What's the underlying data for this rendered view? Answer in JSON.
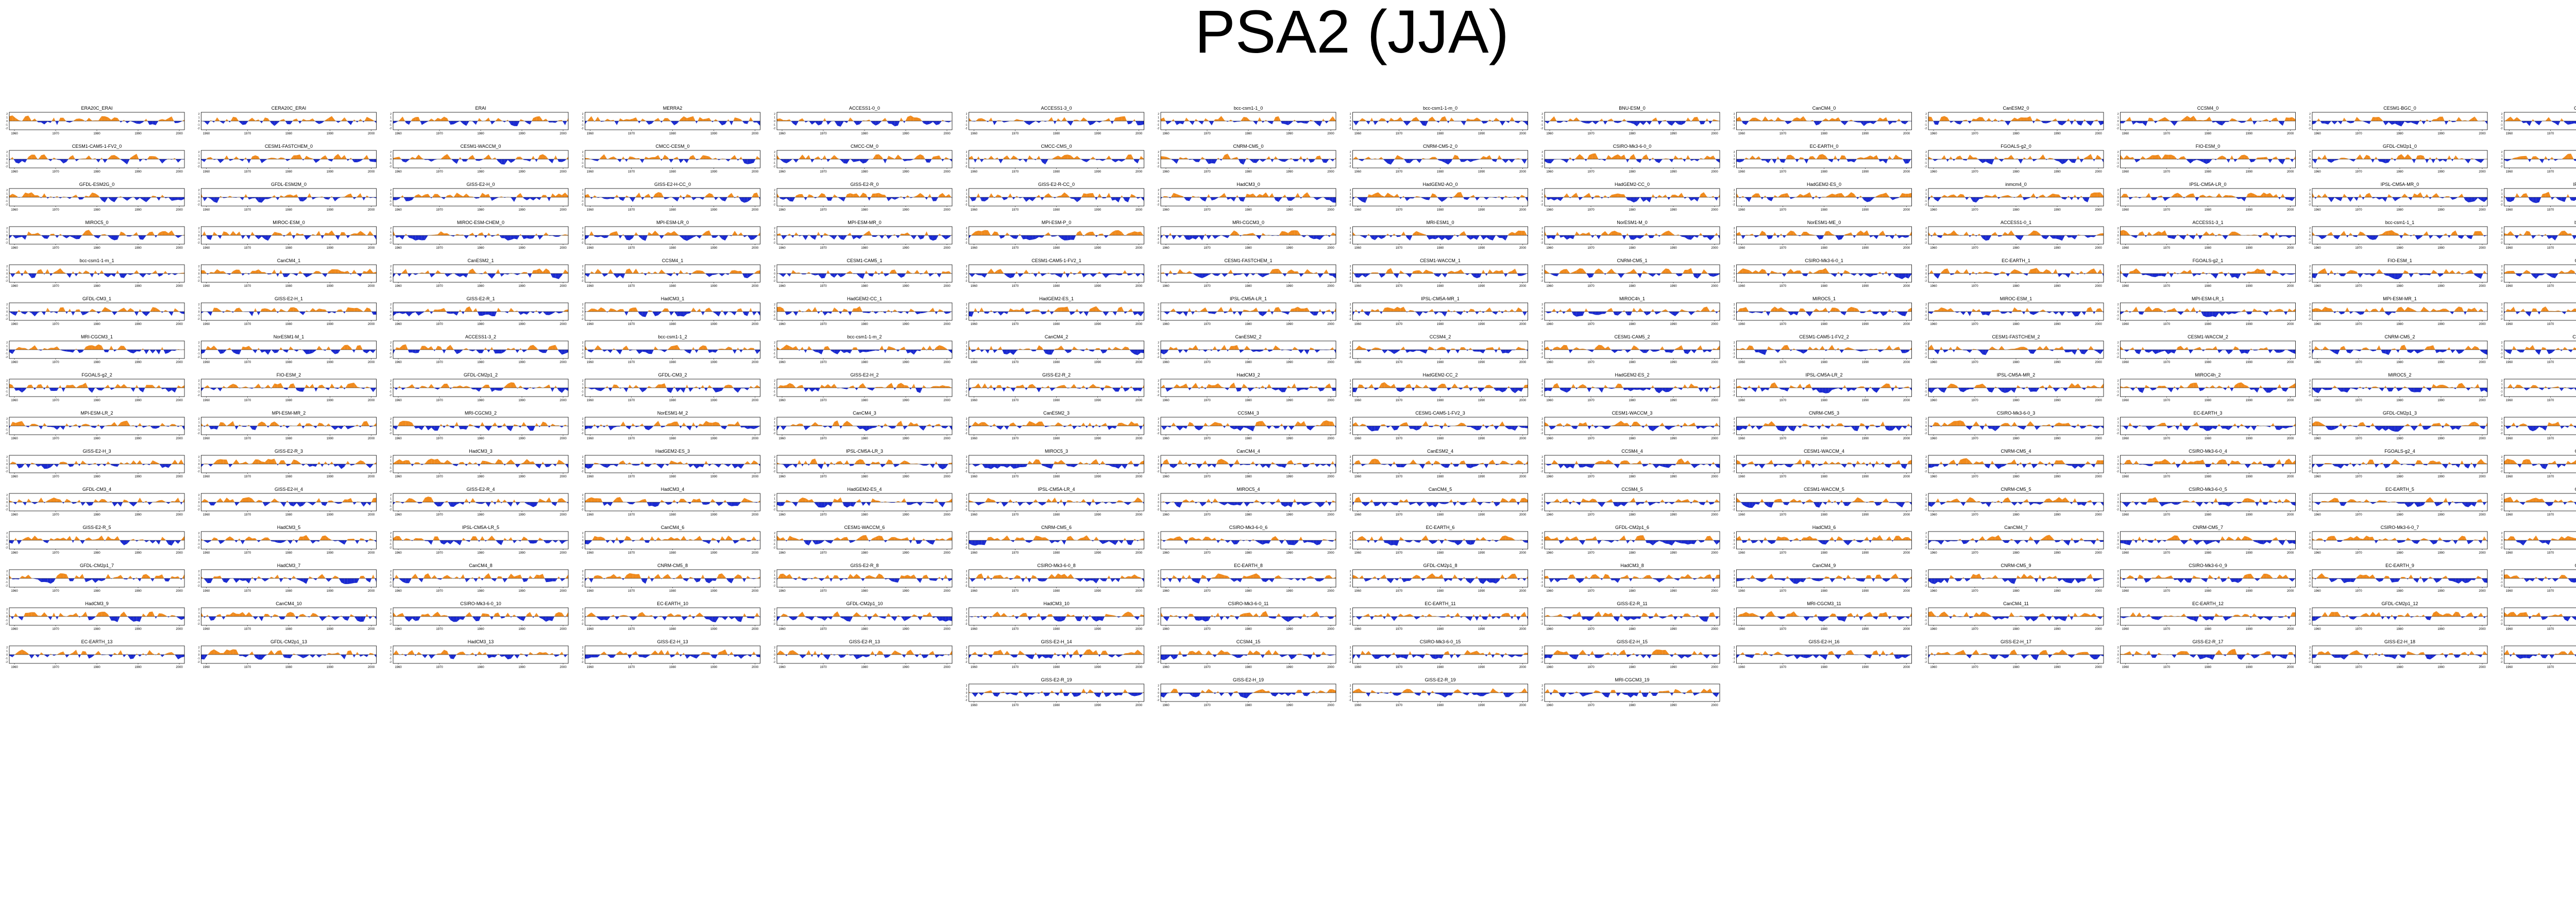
{
  "title": "PSA2 (JJA)",
  "colors": {
    "positive": "#f08a1c",
    "negative": "#1a2ad0",
    "axis": "#000000"
  },
  "xticks": [
    "1960",
    "1970",
    "1980",
    "1990",
    "2000"
  ],
  "yticks": [
    "2",
    "1",
    "0",
    "-1",
    "-2"
  ],
  "rows": [
    [
      "ERA20C_ERAI",
      "CERA20C_ERAI",
      "ERAI",
      "MERRA2",
      "ACCESS1-0_0",
      "ACCESS1-3_0",
      "bcc-csm1-1_0",
      "bcc-csm1-1-m_0",
      "BNU-ESM_0",
      "CanCM4_0",
      "CanESM2_0",
      "CCSM4_0",
      "CESM1-BGC_0",
      "CESM1-CAM5_0"
    ],
    [
      "CESM1-CAM5-1-FV2_0",
      "CESM1-FASTCHEM_0",
      "CESM1-WACCM_0",
      "CMCC-CESM_0",
      "CMCC-CM_0",
      "CMCC-CMS_0",
      "CNRM-CM5_0",
      "CNRM-CM5-2_0",
      "CSIRO-Mk3-6-0_0",
      "EC-EARTH_0",
      "FGOALS-g2_0",
      "FIO-ESM_0",
      "GFDL-CM2p1_0",
      "GFDL-CM3_0"
    ],
    [
      "GFDL-ESM2G_0",
      "GFDL-ESM2M_0",
      "GISS-E2-H_0",
      "GISS-E2-H-CC_0",
      "GISS-E2-R_0",
      "GISS-E2-R-CC_0",
      "HadCM3_0",
      "HadGEM2-AO_0",
      "HadGEM2-CC_0",
      "HadGEM2-ES_0",
      "inmcm4_0",
      "IPSL-CM5A-LR_0",
      "IPSL-CM5A-MR_0",
      "IPSL-CM5B-LR_0"
    ],
    [
      "MIROC5_0",
      "MIROC-ESM_0",
      "MIROC-ESM-CHEM_0",
      "MPI-ESM-LR_0",
      "MPI-ESM-MR_0",
      "MPI-ESM-P_0",
      "MRI-CGCM3_0",
      "MRI-ESM1_0",
      "NorESM1-M_0",
      "NorESM1-ME_0",
      "ACCESS1-0_1",
      "ACCESS1-3_1",
      "bcc-csm1-1_1",
      "bcc-csm1-1-m_1"
    ],
    [
      "bcc-csm1-1-m_1",
      "CanCM4_1",
      "CanESM2_1",
      "CCSM4_1",
      "CESM1-CAM5_1",
      "CESM1-CAM5-1-FV2_1",
      "CESM1-FASTCHEM_1",
      "CESM1-WACCM_1",
      "CNRM-CM5_1",
      "CSIRO-Mk3-6-0_1",
      "EC-EARTH_1",
      "FGOALS-g2_1",
      "FIO-ESM_1",
      "GFDL-CM2p1_1"
    ],
    [
      "GFDL-CM3_1",
      "GISS-E2-H_1",
      "GISS-E2-R_1",
      "HadCM3_1",
      "HadGEM2-CC_1",
      "HadGEM2-ES_1",
      "IPSL-CM5A-LR_1",
      "IPSL-CM5A-MR_1",
      "MIROC4h_1",
      "MIROC5_1",
      "MIROC-ESM_1",
      "MPI-ESM-LR_1",
      "MPI-ESM-MR_1",
      "MPI-ESM-P_1"
    ],
    [
      "MRI-CGCM3_1",
      "NorESM1-M_1",
      "ACCESS1-3_2",
      "bcc-csm1-1_2",
      "bcc-csm1-1-m_2",
      "CanCM4_2",
      "CanESM2_2",
      "CCSM4_2",
      "CESM1-CAM5_2",
      "CESM1-CAM5-1-FV2_2",
      "CESM1-FASTCHEM_2",
      "CESM1-WACCM_2",
      "CNRM-CM5_2",
      "CSIRO-Mk3-6-0_2"
    ],
    [
      "FGOALS-g2_2",
      "FIO-ESM_2",
      "GFDL-CM2p1_2",
      "GFDL-CM3_2",
      "GISS-E2-H_2",
      "GISS-E2-R_2",
      "HadCM3_2",
      "HadGEM2-CC_2",
      "HadGEM2-ES_2",
      "IPSL-CM5A-LR_2",
      "IPSL-CM5A-MR_2",
      "MIROC4h_2",
      "MIROC5_2",
      "MIROC-ESM_2"
    ],
    [
      "MPI-ESM-LR_2",
      "MPI-ESM-MR_2",
      "MRI-CGCM3_2",
      "NorESM1-M_2",
      "CanCM4_3",
      "CanESM2_3",
      "CCSM4_3",
      "CESM1-CAM5-1-FV2_3",
      "CESM1-WACCM_3",
      "CNRM-CM5_3",
      "CSIRO-Mk3-6-0_3",
      "EC-EARTH_3",
      "GFDL-CM2p1_3",
      "GFDL-CM3_3"
    ],
    [
      "GISS-E2-H_3",
      "GISS-E2-R_3",
      "HadCM3_3",
      "HadGEM2-ES_3",
      "IPSL-CM5A-LR_3",
      "MIROC5_3",
      "CanCM4_4",
      "CanESM2_4",
      "CCSM4_4",
      "CESM1-WACCM_4",
      "CNRM-CM5_4",
      "CSIRO-Mk3-6-0_4",
      "FGOALS-g2_4",
      "GFDL-CM2p1_4"
    ],
    [
      "GFDL-CM3_4",
      "GISS-E2-H_4",
      "GISS-E2-R_4",
      "HadCM3_4",
      "HadGEM2-ES_4",
      "IPSL-CM5A-LR_4",
      "MIROC5_4",
      "CanCM4_5",
      "CCSM4_5",
      "CESM1-WACCM_5",
      "CNRM-CM5_5",
      "CSIRO-Mk3-6-0_5",
      "EC-EARTH_5",
      "GFDL-CM2p1_5"
    ],
    [
      "GISS-E2-R_5",
      "HadCM3_5",
      "IPSL-CM5A-LR_5",
      "CanCM4_6",
      "CESM1-WACCM_6",
      "CNRM-CM5_6",
      "CSIRO-Mk3-6-0_6",
      "EC-EARTH_6",
      "GFDL-CM2p1_6",
      "HadCM3_6",
      "CanCM4_7",
      "CNRM-CM5_7",
      "CSIRO-Mk3-6-0_7",
      "EC-EARTH_7"
    ],
    [
      "GFDL-CM2p1_7",
      "HadCM3_7",
      "CanCM4_8",
      "CNRM-CM5_8",
      "GISS-E2-R_8",
      "CSIRO-Mk3-6-0_8",
      "EC-EARTH_8",
      "GFDL-CM2p1_8",
      "HadCM3_8",
      "CanCM4_9",
      "CNRM-CM5_9",
      "CSIRO-Mk3-6-0_9",
      "EC-EARTH_9",
      "GFDL-CM2p1_9"
    ],
    [
      "HadCM3_9",
      "CanCM4_10",
      "CSIRO-Mk3-6-0_10",
      "EC-EARTH_10",
      "GFDL-CM2p1_10",
      "HadCM3_10",
      "CSIRO-Mk3-6-0_11",
      "EC-EARTH_11",
      "GISS-E2-R_11",
      "MRI-CGCM3_11",
      "CanCM4_11",
      "EC-EARTH_12",
      "GFDL-CM2p1_12",
      "CanCM4_12"
    ],
    [
      "EC-EARTH_13",
      "GFDL-CM2p1_13",
      "HadCM3_13",
      "GISS-E2-H_13",
      "GISS-E2-R_13",
      "GISS-E2-H_14",
      "CCSM4_15",
      "CSIRO-Mk3-6-0_15",
      "GISS-E2-H_15",
      "GISS-E2-H_16",
      "GISS-E2-H_17",
      "GISS-E2-R_17",
      "GISS-E2-H_18",
      "GISS-E2-R_18"
    ],
    [
      "",
      "",
      "",
      "",
      "",
      "GISS-E2-R_19",
      "GISS-E2-H_19",
      "GISS-E2-R_19",
      "MRI-CGCM3_19",
      "",
      "",
      "",
      "",
      ""
    ]
  ]
}
